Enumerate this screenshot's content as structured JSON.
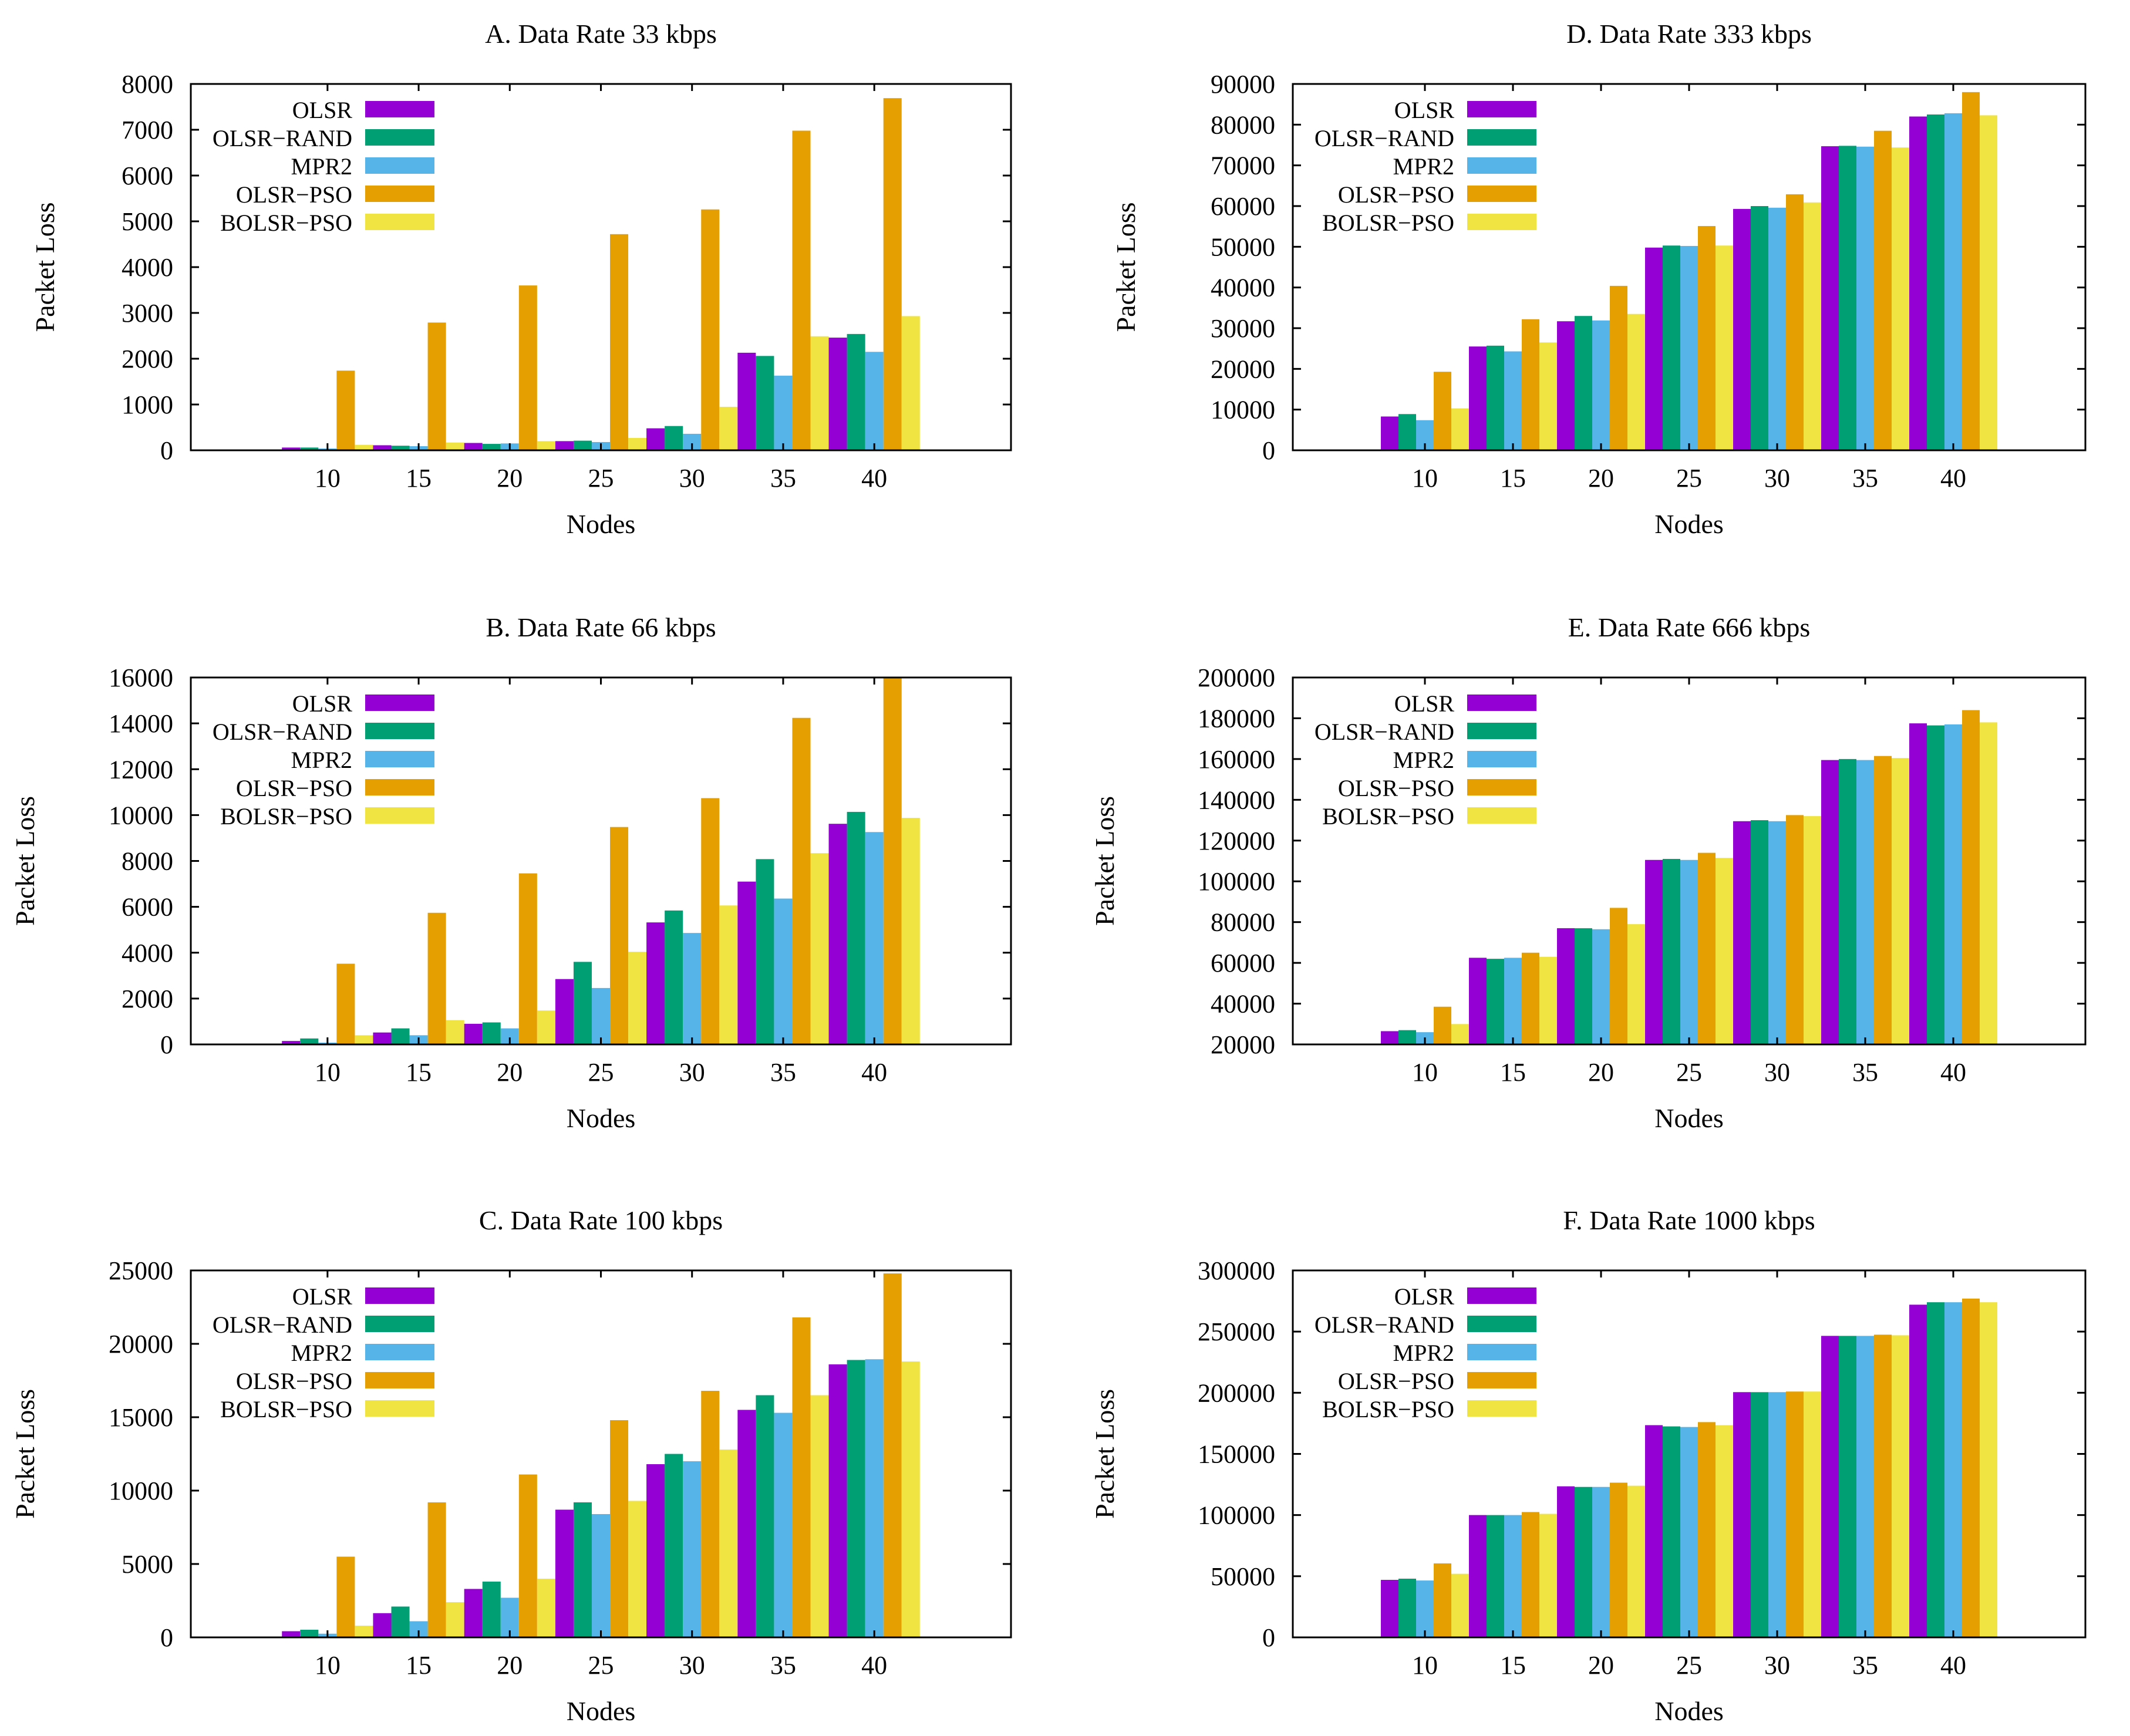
{
  "legend_colors": {
    "OLSR": "#9400d3",
    "OLSR-RAND": "#009e73",
    "MPR2": "#56b4e9",
    "OLSR-PSO": "#e69f00",
    "BOLSR-PSO": "#f0e442"
  },
  "chart_data": [
    {
      "type": "bar",
      "title": "A. Data Rate 33 kbps",
      "xlabel": "Nodes",
      "ylabel": "Packet Loss",
      "ylim": [
        0,
        8000
      ],
      "yticks": [
        "0",
        "1000",
        "2000",
        "3000",
        "4000",
        "5000",
        "6000",
        "7000",
        "8000"
      ],
      "categories": [
        "10",
        "15",
        "20",
        "25",
        "30",
        "35",
        "40"
      ],
      "legend_position": "top-left",
      "series": [
        {
          "name": "OLSR",
          "values": [
            60,
            110,
            160,
            200,
            480,
            2130,
            2460
          ]
        },
        {
          "name": "OLSR−RAND",
          "values": [
            60,
            100,
            140,
            210,
            530,
            2060,
            2540
          ]
        },
        {
          "name": "MPR2",
          "values": [
            40,
            90,
            150,
            180,
            360,
            1630,
            2150
          ]
        },
        {
          "name": "OLSR−PSO",
          "values": [
            1740,
            2790,
            3600,
            4720,
            5260,
            6980,
            7690
          ]
        },
        {
          "name": "BOLSR−PSO",
          "values": [
            120,
            170,
            200,
            270,
            950,
            2490,
            2930
          ]
        }
      ]
    },
    {
      "type": "bar",
      "title": "B. Data Rate 66 kbps",
      "xlabel": "Nodes",
      "ylabel": "Packet Loss",
      "ylim": [
        0,
        16000
      ],
      "yticks": [
        "0",
        "2000",
        "4000",
        "6000",
        "8000",
        "10000",
        "12000",
        "14000",
        "16000"
      ],
      "categories": [
        "10",
        "15",
        "20",
        "25",
        "30",
        "35",
        "40"
      ],
      "legend_position": "top-left",
      "series": [
        {
          "name": "OLSR",
          "values": [
            150,
            520,
            900,
            2850,
            5320,
            7100,
            9620
          ]
        },
        {
          "name": "OLSR−RAND",
          "values": [
            260,
            700,
            960,
            3600,
            5840,
            8080,
            10140
          ]
        },
        {
          "name": "MPR2",
          "values": [
            80,
            400,
            700,
            2460,
            4860,
            6360,
            9260
          ]
        },
        {
          "name": "OLSR−PSO",
          "values": [
            3520,
            5740,
            7460,
            9480,
            10740,
            14240,
            16000
          ]
        },
        {
          "name": "BOLSR−PSO",
          "values": [
            400,
            1060,
            1480,
            4040,
            6060,
            8340,
            9880
          ]
        }
      ]
    },
    {
      "type": "bar",
      "title": "C. Data Rate 100 kbps",
      "xlabel": "Nodes",
      "ylabel": "Packet Loss",
      "ylim": [
        0,
        25000
      ],
      "yticks": [
        "0",
        "5000",
        "10000",
        "15000",
        "20000",
        "25000"
      ],
      "categories": [
        "10",
        "15",
        "20",
        "25",
        "30",
        "35",
        "40"
      ],
      "legend_position": "top-left",
      "series": [
        {
          "name": "OLSR",
          "values": [
            420,
            1650,
            3300,
            8700,
            11800,
            15500,
            18600
          ]
        },
        {
          "name": "OLSR−RAND",
          "values": [
            520,
            2100,
            3800,
            9200,
            12500,
            16500,
            18900
          ]
        },
        {
          "name": "MPR2",
          "values": [
            250,
            1100,
            2700,
            8400,
            12000,
            15300,
            18950
          ]
        },
        {
          "name": "OLSR−PSO",
          "values": [
            5500,
            9200,
            11100,
            14800,
            16800,
            21800,
            24800
          ]
        },
        {
          "name": "BOLSR−PSO",
          "values": [
            800,
            2400,
            4000,
            9300,
            12800,
            16500,
            18800
          ]
        }
      ]
    },
    {
      "type": "bar",
      "title": "D. Data Rate 333 kbps",
      "xlabel": "Nodes",
      "ylabel": "Packet Loss",
      "ylim": [
        0,
        90000
      ],
      "yticks": [
        "0",
        "10000",
        "20000",
        "30000",
        "40000",
        "50000",
        "60000",
        "70000",
        "80000",
        "90000"
      ],
      "categories": [
        "10",
        "15",
        "20",
        "25",
        "30",
        "35",
        "40"
      ],
      "legend_position": "top-left",
      "series": [
        {
          "name": "OLSR",
          "values": [
            8300,
            25500,
            31700,
            49800,
            59300,
            74700,
            82000
          ]
        },
        {
          "name": "OLSR−RAND",
          "values": [
            8900,
            25700,
            33000,
            50300,
            60000,
            74800,
            82500
          ]
        },
        {
          "name": "MPR2",
          "values": [
            7400,
            24300,
            31900,
            50200,
            59600,
            74600,
            82800
          ]
        },
        {
          "name": "OLSR−PSO",
          "values": [
            19300,
            32200,
            40400,
            55100,
            62900,
            78500,
            88000
          ]
        },
        {
          "name": "BOLSR−PSO",
          "values": [
            10300,
            26500,
            33500,
            50300,
            60900,
            74400,
            82300
          ]
        }
      ]
    },
    {
      "type": "bar",
      "title": "E. Data Rate 666 kbps",
      "xlabel": "Nodes",
      "ylabel": "Packet Loss",
      "ylim": [
        20000,
        200000
      ],
      "yticks": [
        "20000",
        "40000",
        "60000",
        "80000",
        "100000",
        "120000",
        "140000",
        "160000",
        "180000",
        "200000"
      ],
      "categories": [
        "10",
        "15",
        "20",
        "25",
        "30",
        "35",
        "40"
      ],
      "legend_position": "top-left",
      "series": [
        {
          "name": "OLSR",
          "values": [
            26500,
            62500,
            77000,
            110500,
            129500,
            159500,
            177500
          ]
        },
        {
          "name": "OLSR−RAND",
          "values": [
            27000,
            62000,
            77000,
            111000,
            130000,
            160000,
            176500
          ]
        },
        {
          "name": "MPR2",
          "values": [
            26000,
            62500,
            76500,
            110500,
            129500,
            159500,
            177000
          ]
        },
        {
          "name": "OLSR−PSO",
          "values": [
            38500,
            65000,
            87000,
            114000,
            132500,
            161500,
            184000
          ]
        },
        {
          "name": "BOLSR−PSO",
          "values": [
            30000,
            63000,
            79000,
            111500,
            132000,
            160500,
            178000
          ]
        }
      ]
    },
    {
      "type": "bar",
      "title": "F. Data Rate 1000 kbps",
      "xlabel": "Nodes",
      "ylabel": "Packet Loss",
      "ylim": [
        0,
        300000
      ],
      "yticks": [
        "0",
        "50000",
        "100000",
        "150000",
        "200000",
        "250000",
        "300000"
      ],
      "categories": [
        "10",
        "15",
        "20",
        "25",
        "30",
        "35",
        "40"
      ],
      "legend_position": "top-left",
      "series": [
        {
          "name": "OLSR",
          "values": [
            47000,
            100000,
            123500,
            173500,
            200500,
            246500,
            272000
          ]
        },
        {
          "name": "OLSR−RAND",
          "values": [
            48000,
            100000,
            123000,
            172500,
            200500,
            246500,
            274000
          ]
        },
        {
          "name": "MPR2",
          "values": [
            46500,
            100000,
            123000,
            172000,
            200500,
            246500,
            274000
          ]
        },
        {
          "name": "OLSR−PSO",
          "values": [
            60500,
            102500,
            126500,
            176000,
            201000,
            247500,
            277000
          ]
        },
        {
          "name": "BOLSR−PSO",
          "values": [
            52000,
            101000,
            124000,
            173500,
            201000,
            247000,
            274000
          ]
        }
      ]
    }
  ]
}
